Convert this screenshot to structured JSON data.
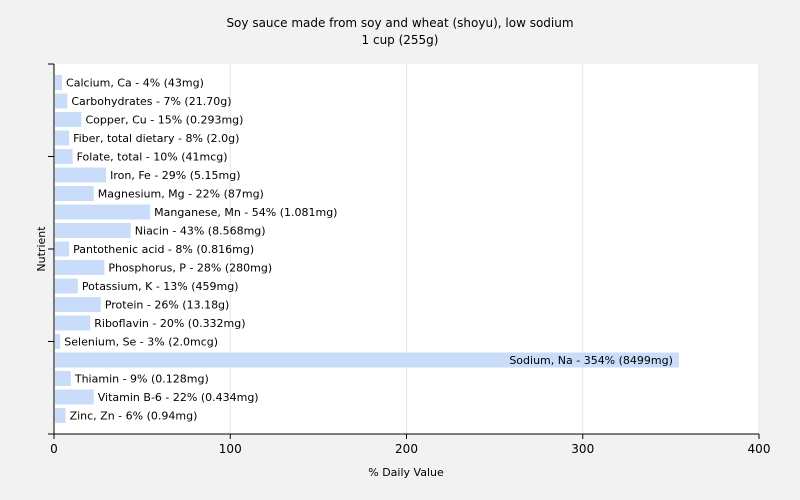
{
  "chart_data": {
    "type": "bar",
    "orientation": "horizontal",
    "title": "Soy sauce made from soy and wheat (shoyu), low sodium",
    "subtitle": "1 cup (255g)",
    "xlabel": "% Daily Value",
    "ylabel": "Nutrient",
    "xlim": [
      0,
      400
    ],
    "xticks": [
      "0",
      "100",
      "200",
      "300",
      "400"
    ],
    "grid": true,
    "bar_color": "#c9ddfa",
    "categories": [
      "Calcium, Ca - 4% (43mg)",
      "Carbohydrates - 7% (21.70g)",
      "Copper, Cu - 15% (0.293mg)",
      "Fiber, total dietary - 8% (2.0g)",
      "Folate, total - 10% (41mcg)",
      "Iron, Fe - 29% (5.15mg)",
      "Magnesium, Mg - 22% (87mg)",
      "Manganese, Mn - 54% (1.081mg)",
      "Niacin - 43% (8.568mg)",
      "Pantothenic acid - 8% (0.816mg)",
      "Phosphorus, P - 28% (280mg)",
      "Potassium, K - 13% (459mg)",
      "Protein - 26% (13.18g)",
      "Riboflavin - 20% (0.332mg)",
      "Selenium, Se - 3% (2.0mcg)",
      "Sodium, Na - 354% (8499mg)",
      "Thiamin - 9% (0.128mg)",
      "Vitamin B-6 - 22% (0.434mg)",
      "Zinc, Zn - 6% (0.94mg)"
    ],
    "values": [
      4,
      7,
      15,
      8,
      10,
      29,
      22,
      54,
      43,
      8,
      28,
      13,
      26,
      20,
      3,
      354,
      9,
      22,
      6
    ]
  }
}
